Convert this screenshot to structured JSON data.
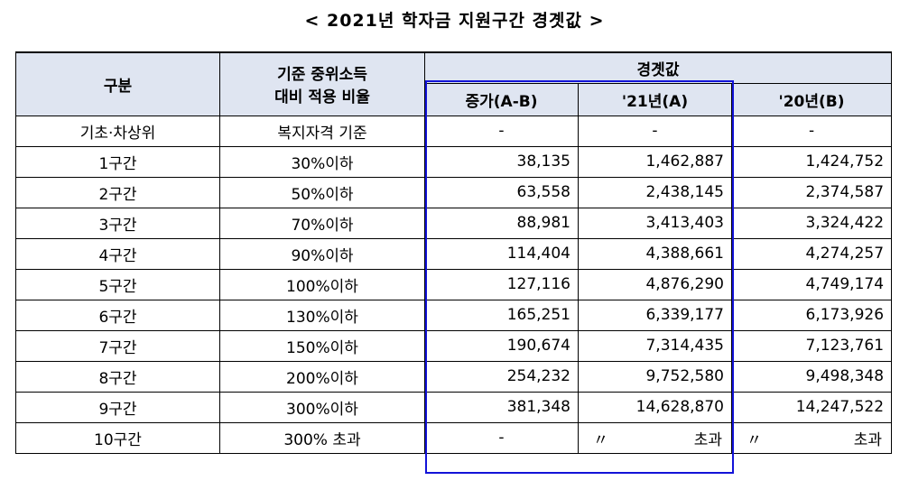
{
  "title": "< 2021년 학자금 지원구간 경곗값 >",
  "header": {
    "col1": "구분",
    "col2_line1": "기준 중위소득",
    "col2_line2": "대비 적용 비율",
    "group": "경곗값",
    "sub1": "증가(A-B)",
    "sub2": "'21년(A)",
    "sub3": "'20년(B)"
  },
  "rows": [
    {
      "label": "기초·차상위",
      "ratio": "복지자격 기준",
      "diff": "-",
      "y21": "-",
      "y20": "-"
    },
    {
      "label": "1구간",
      "ratio": "30%이하",
      "diff": "38,135",
      "y21": "1,462,887",
      "y20": "1,424,752"
    },
    {
      "label": "2구간",
      "ratio": "50%이하",
      "diff": "63,558",
      "y21": "2,438,145",
      "y20": "2,374,587"
    },
    {
      "label": "3구간",
      "ratio": "70%이하",
      "diff": "88,981",
      "y21": "3,413,403",
      "y20": "3,324,422"
    },
    {
      "label": "4구간",
      "ratio": "90%이하",
      "diff": "114,404",
      "y21": "4,388,661",
      "y20": "4,274,257"
    },
    {
      "label": "5구간",
      "ratio": "100%이하",
      "diff": "127,116",
      "y21": "4,876,290",
      "y20": "4,749,174"
    },
    {
      "label": "6구간",
      "ratio": "130%이하",
      "diff": "165,251",
      "y21": "6,339,177",
      "y20": "6,173,926"
    },
    {
      "label": "7구간",
      "ratio": "150%이하",
      "diff": "190,674",
      "y21": "7,314,435",
      "y20": "7,123,761"
    },
    {
      "label": "8구간",
      "ratio": "200%이하",
      "diff": "254,232",
      "y21": "9,752,580",
      "y20": "9,498,348"
    },
    {
      "label": "9구간",
      "ratio": "300%이하",
      "diff": "381,348",
      "y21": "14,628,870",
      "y20": "14,247,522"
    },
    {
      "label": "10구간",
      "ratio": "300% 초과",
      "diff": "-",
      "y21_mark": "〃",
      "y21_text": "초과",
      "y20_mark": "〃",
      "y20_text": "초과"
    }
  ],
  "colors": {
    "header_bg": "#dfe5f1",
    "highlight_border": "#1313d8"
  }
}
